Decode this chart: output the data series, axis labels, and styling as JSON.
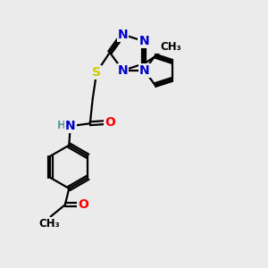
{
  "bg_color": "#ebebeb",
  "atom_colors": {
    "C": "#000000",
    "N": "#0000cc",
    "O": "#ff0000",
    "S": "#cccc00",
    "H": "#5a9a9a"
  },
  "bond_color": "#000000",
  "bond_width": 1.6,
  "font_size_atom": 10,
  "font_size_small": 8.5
}
